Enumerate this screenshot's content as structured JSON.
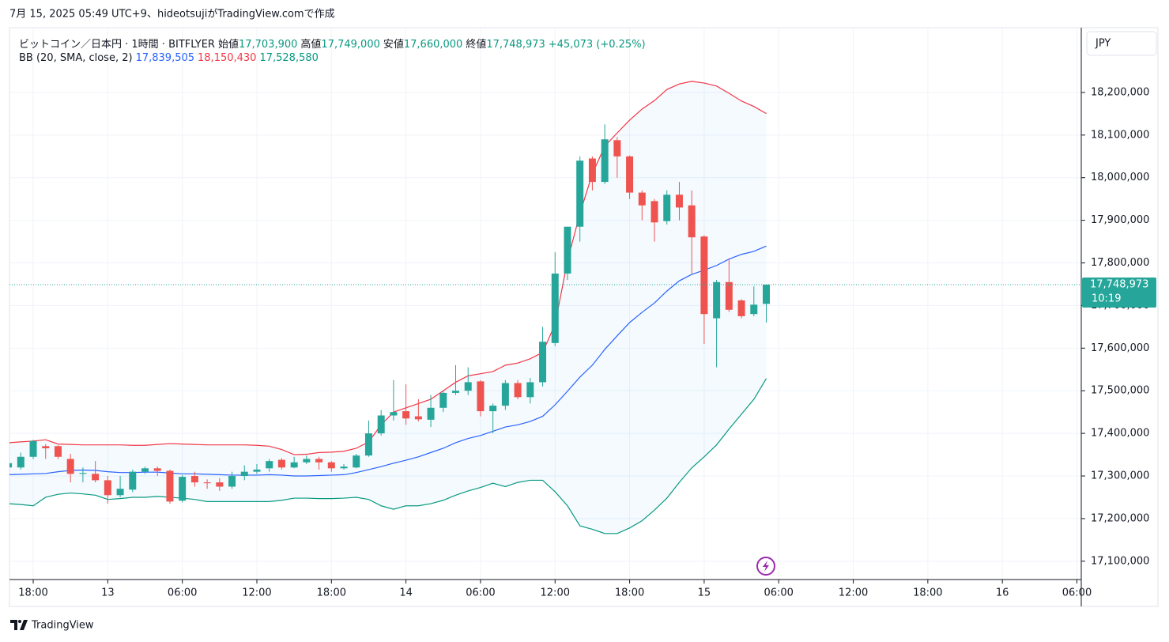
{
  "header": {
    "attribution": "7月 15, 2025 05:49 UTC+9、hideotsujiがTradingView.comで作成"
  },
  "footer": {
    "brand": "TradingView"
  },
  "chart_data": {
    "type": "candlestick",
    "symbol": "ビットコイン／日本円 · 1時間 · BITFLYER",
    "ohlc_legend": [
      {
        "label": "始値",
        "value": "17,703,900"
      },
      {
        "label": "高値",
        "value": "17,749,000"
      },
      {
        "label": "安値",
        "value": "17,660,000"
      },
      {
        "label": "終値",
        "value": "17,748,973"
      }
    ],
    "change": "+45,073 (+0.25%)",
    "up_color": "#26a69a",
    "down_color": "#ef5350",
    "open": [
      17320000,
      17320000,
      17345000,
      17370000,
      17370000,
      17340000,
      17305000,
      17305000,
      17290000,
      17255000,
      17268000,
      17310000,
      17318000,
      17312000,
      17242000,
      17300000,
      17285000,
      17285000,
      17275000,
      17300000,
      17310000,
      17318000,
      17338000,
      17320000,
      17332000,
      17340000,
      17332000,
      17318000,
      17320000,
      17348000,
      17400000,
      17442000,
      17452000,
      17440000,
      17432000,
      17460000,
      17495000,
      17500000,
      17522000,
      17452000,
      17465000,
      17518000,
      17485000,
      17520000,
      17612000,
      17775000,
      17885000,
      18045000,
      17990000,
      18088000,
      18050000,
      17965000,
      17945000,
      17898000,
      17960000,
      17935000,
      17862000,
      17670000,
      17755000,
      17712000,
      17680000,
      17703900
    ],
    "high": [
      17335000,
      17355000,
      17385000,
      17375000,
      17372000,
      17352000,
      17320000,
      17335000,
      17300000,
      17300000,
      17315000,
      17322000,
      17322000,
      17315000,
      17302000,
      17310000,
      17292000,
      17295000,
      17310000,
      17325000,
      17328000,
      17340000,
      17342000,
      17345000,
      17348000,
      17345000,
      17335000,
      17328000,
      17352000,
      17430000,
      17455000,
      17525000,
      17515000,
      17480000,
      17490000,
      17500000,
      17560000,
      17555000,
      17525000,
      17470000,
      17525000,
      17525000,
      17530000,
      17650000,
      17825000,
      17885000,
      18050000,
      18050000,
      18125000,
      18095000,
      18052000,
      17970000,
      17950000,
      17970000,
      17990000,
      17970000,
      17865000,
      17760000,
      17810000,
      17715000,
      17745000,
      17749000
    ],
    "low": [
      17315000,
      17315000,
      17340000,
      17340000,
      17340000,
      17285000,
      17285000,
      17285000,
      17235000,
      17250000,
      17262000,
      17305000,
      17300000,
      17235000,
      17238000,
      17275000,
      17270000,
      17265000,
      17270000,
      17290000,
      17305000,
      17310000,
      17315000,
      17318000,
      17328000,
      17315000,
      17310000,
      17315000,
      17318000,
      17345000,
      17395000,
      17430000,
      17420000,
      17428000,
      17415000,
      17450000,
      17490000,
      17490000,
      17440000,
      17400000,
      17455000,
      17480000,
      17470000,
      17510000,
      17605000,
      17760000,
      17850000,
      17970000,
      17985000,
      18000000,
      17950000,
      17900000,
      17850000,
      17890000,
      17900000,
      17775000,
      17610000,
      17555000,
      17685000,
      17670000,
      17675000,
      17660000
    ],
    "close": [
      17330000,
      17345000,
      17382000,
      17365000,
      17345000,
      17305000,
      17307000,
      17290000,
      17255000,
      17270000,
      17310000,
      17318000,
      17312000,
      17240000,
      17298000,
      17285000,
      17283000,
      17275000,
      17300000,
      17310000,
      17315000,
      17335000,
      17320000,
      17332000,
      17340000,
      17332000,
      17318000,
      17322000,
      17348000,
      17400000,
      17442000,
      17450000,
      17435000,
      17433000,
      17460000,
      17495000,
      17500000,
      17520000,
      17452000,
      17465000,
      17518000,
      17485000,
      17520000,
      17615000,
      17775000,
      17885000,
      18040000,
      17990000,
      18090000,
      18050000,
      17965000,
      17935000,
      17895000,
      17960000,
      17930000,
      17860000,
      17680000,
      17755000,
      17690000,
      17675000,
      17702000,
      17748973
    ],
    "indicator": {
      "label": "BB (20, SMA, close, 2)",
      "fill": "#2196f3",
      "series": [
        {
          "color": "#2962ff",
          "value_label": "17,839,505",
          "values": [
            17303000,
            17304000,
            17305000,
            17306000,
            17310000,
            17313000,
            17314000,
            17313000,
            17310000,
            17308000,
            17308000,
            17309000,
            17309000,
            17307000,
            17305000,
            17305000,
            17304000,
            17303000,
            17302000,
            17302000,
            17302000,
            17303000,
            17302000,
            17300000,
            17300000,
            17301000,
            17302000,
            17303000,
            17308000,
            17315000,
            17322000,
            17330000,
            17337000,
            17345000,
            17355000,
            17365000,
            17378000,
            17388000,
            17395000,
            17405000,
            17415000,
            17420000,
            17428000,
            17440000,
            17467000,
            17499000,
            17532000,
            17560000,
            17597000,
            17629000,
            17660000,
            17684000,
            17706000,
            17734000,
            17758000,
            17773000,
            17783000,
            17794000,
            17809000,
            17820000,
            17827000,
            17839505
          ]
        },
        {
          "color": "#f23645",
          "value_label": "18,150,430",
          "values": [
            17378000,
            17380000,
            17382000,
            17385000,
            17375000,
            17374000,
            17373000,
            17373000,
            17373000,
            17373000,
            17372000,
            17372000,
            17374000,
            17376000,
            17375000,
            17374000,
            17373000,
            17373000,
            17373000,
            17373000,
            17372000,
            17370000,
            17362000,
            17350000,
            17351000,
            17355000,
            17356000,
            17358000,
            17365000,
            17380000,
            17420000,
            17450000,
            17460000,
            17470000,
            17480000,
            17500000,
            17520000,
            17535000,
            17540000,
            17545000,
            17560000,
            17565000,
            17575000,
            17590000,
            17656000,
            17805000,
            17916000,
            18009000,
            18074000,
            18105000,
            18135000,
            18161000,
            18181000,
            18207000,
            18220000,
            18226000,
            18222000,
            18215000,
            18198000,
            18180000,
            18167000,
            18150430
          ]
        },
        {
          "color": "#089981",
          "value_label": "17,528,580",
          "values": [
            17235000,
            17233000,
            17230000,
            17250000,
            17257000,
            17260000,
            17258000,
            17255000,
            17245000,
            17247000,
            17250000,
            17250000,
            17252000,
            17250000,
            17248000,
            17245000,
            17240000,
            17240000,
            17240000,
            17240000,
            17240000,
            17240000,
            17243000,
            17248000,
            17248000,
            17247000,
            17247000,
            17248000,
            17250000,
            17245000,
            17230000,
            17222000,
            17230000,
            17230000,
            17235000,
            17243000,
            17255000,
            17265000,
            17273000,
            17283000,
            17275000,
            17285000,
            17290000,
            17290000,
            17263000,
            17230000,
            17183000,
            17175000,
            17165000,
            17165000,
            17178000,
            17195000,
            17220000,
            17248000,
            17285000,
            17319000,
            17345000,
            17373000,
            17410000,
            17445000,
            17480000,
            17528580
          ]
        }
      ]
    },
    "currency": "JPY",
    "last_price_label": "17,748,973",
    "countdown": "10:19",
    "xlim": [
      0.09,
      86.35
    ],
    "xticks": [
      {
        "value": 2,
        "label": "18:00"
      },
      {
        "value": 8,
        "label": "13"
      },
      {
        "value": 14,
        "label": "06:00"
      },
      {
        "value": 20,
        "label": "12:00"
      },
      {
        "value": 26,
        "label": "18:00"
      },
      {
        "value": 32,
        "label": "14"
      },
      {
        "value": 38,
        "label": "06:00"
      },
      {
        "value": 44,
        "label": "12:00"
      },
      {
        "value": 50,
        "label": "18:00"
      },
      {
        "value": 56,
        "label": "15"
      },
      {
        "value": 62,
        "label": "06:00"
      },
      {
        "value": 68,
        "label": "12:00"
      },
      {
        "value": 74,
        "label": "18:00"
      },
      {
        "value": 80,
        "label": "16"
      },
      {
        "value": 86,
        "label": "06:00"
      }
    ],
    "ylim": [
      17057000,
      18352000
    ],
    "yticks": [
      {
        "value": 17100000,
        "label": "17,100,000"
      },
      {
        "value": 17200000,
        "label": "17,200,000"
      },
      {
        "value": 17300000,
        "label": "17,300,000"
      },
      {
        "value": 17400000,
        "label": "17,400,000"
      },
      {
        "value": 17500000,
        "label": "17,500,000"
      },
      {
        "value": 17600000,
        "label": "17,600,000"
      },
      {
        "value": 17700000,
        "label": "17,700,000"
      },
      {
        "value": 17800000,
        "label": "17,800,000"
      },
      {
        "value": 17900000,
        "label": "17,900,000"
      },
      {
        "value": 18000000,
        "label": "18,000,000"
      },
      {
        "value": 18100000,
        "label": "18,100,000"
      },
      {
        "value": 18200000,
        "label": "18,200,000"
      }
    ],
    "grid": true
  }
}
